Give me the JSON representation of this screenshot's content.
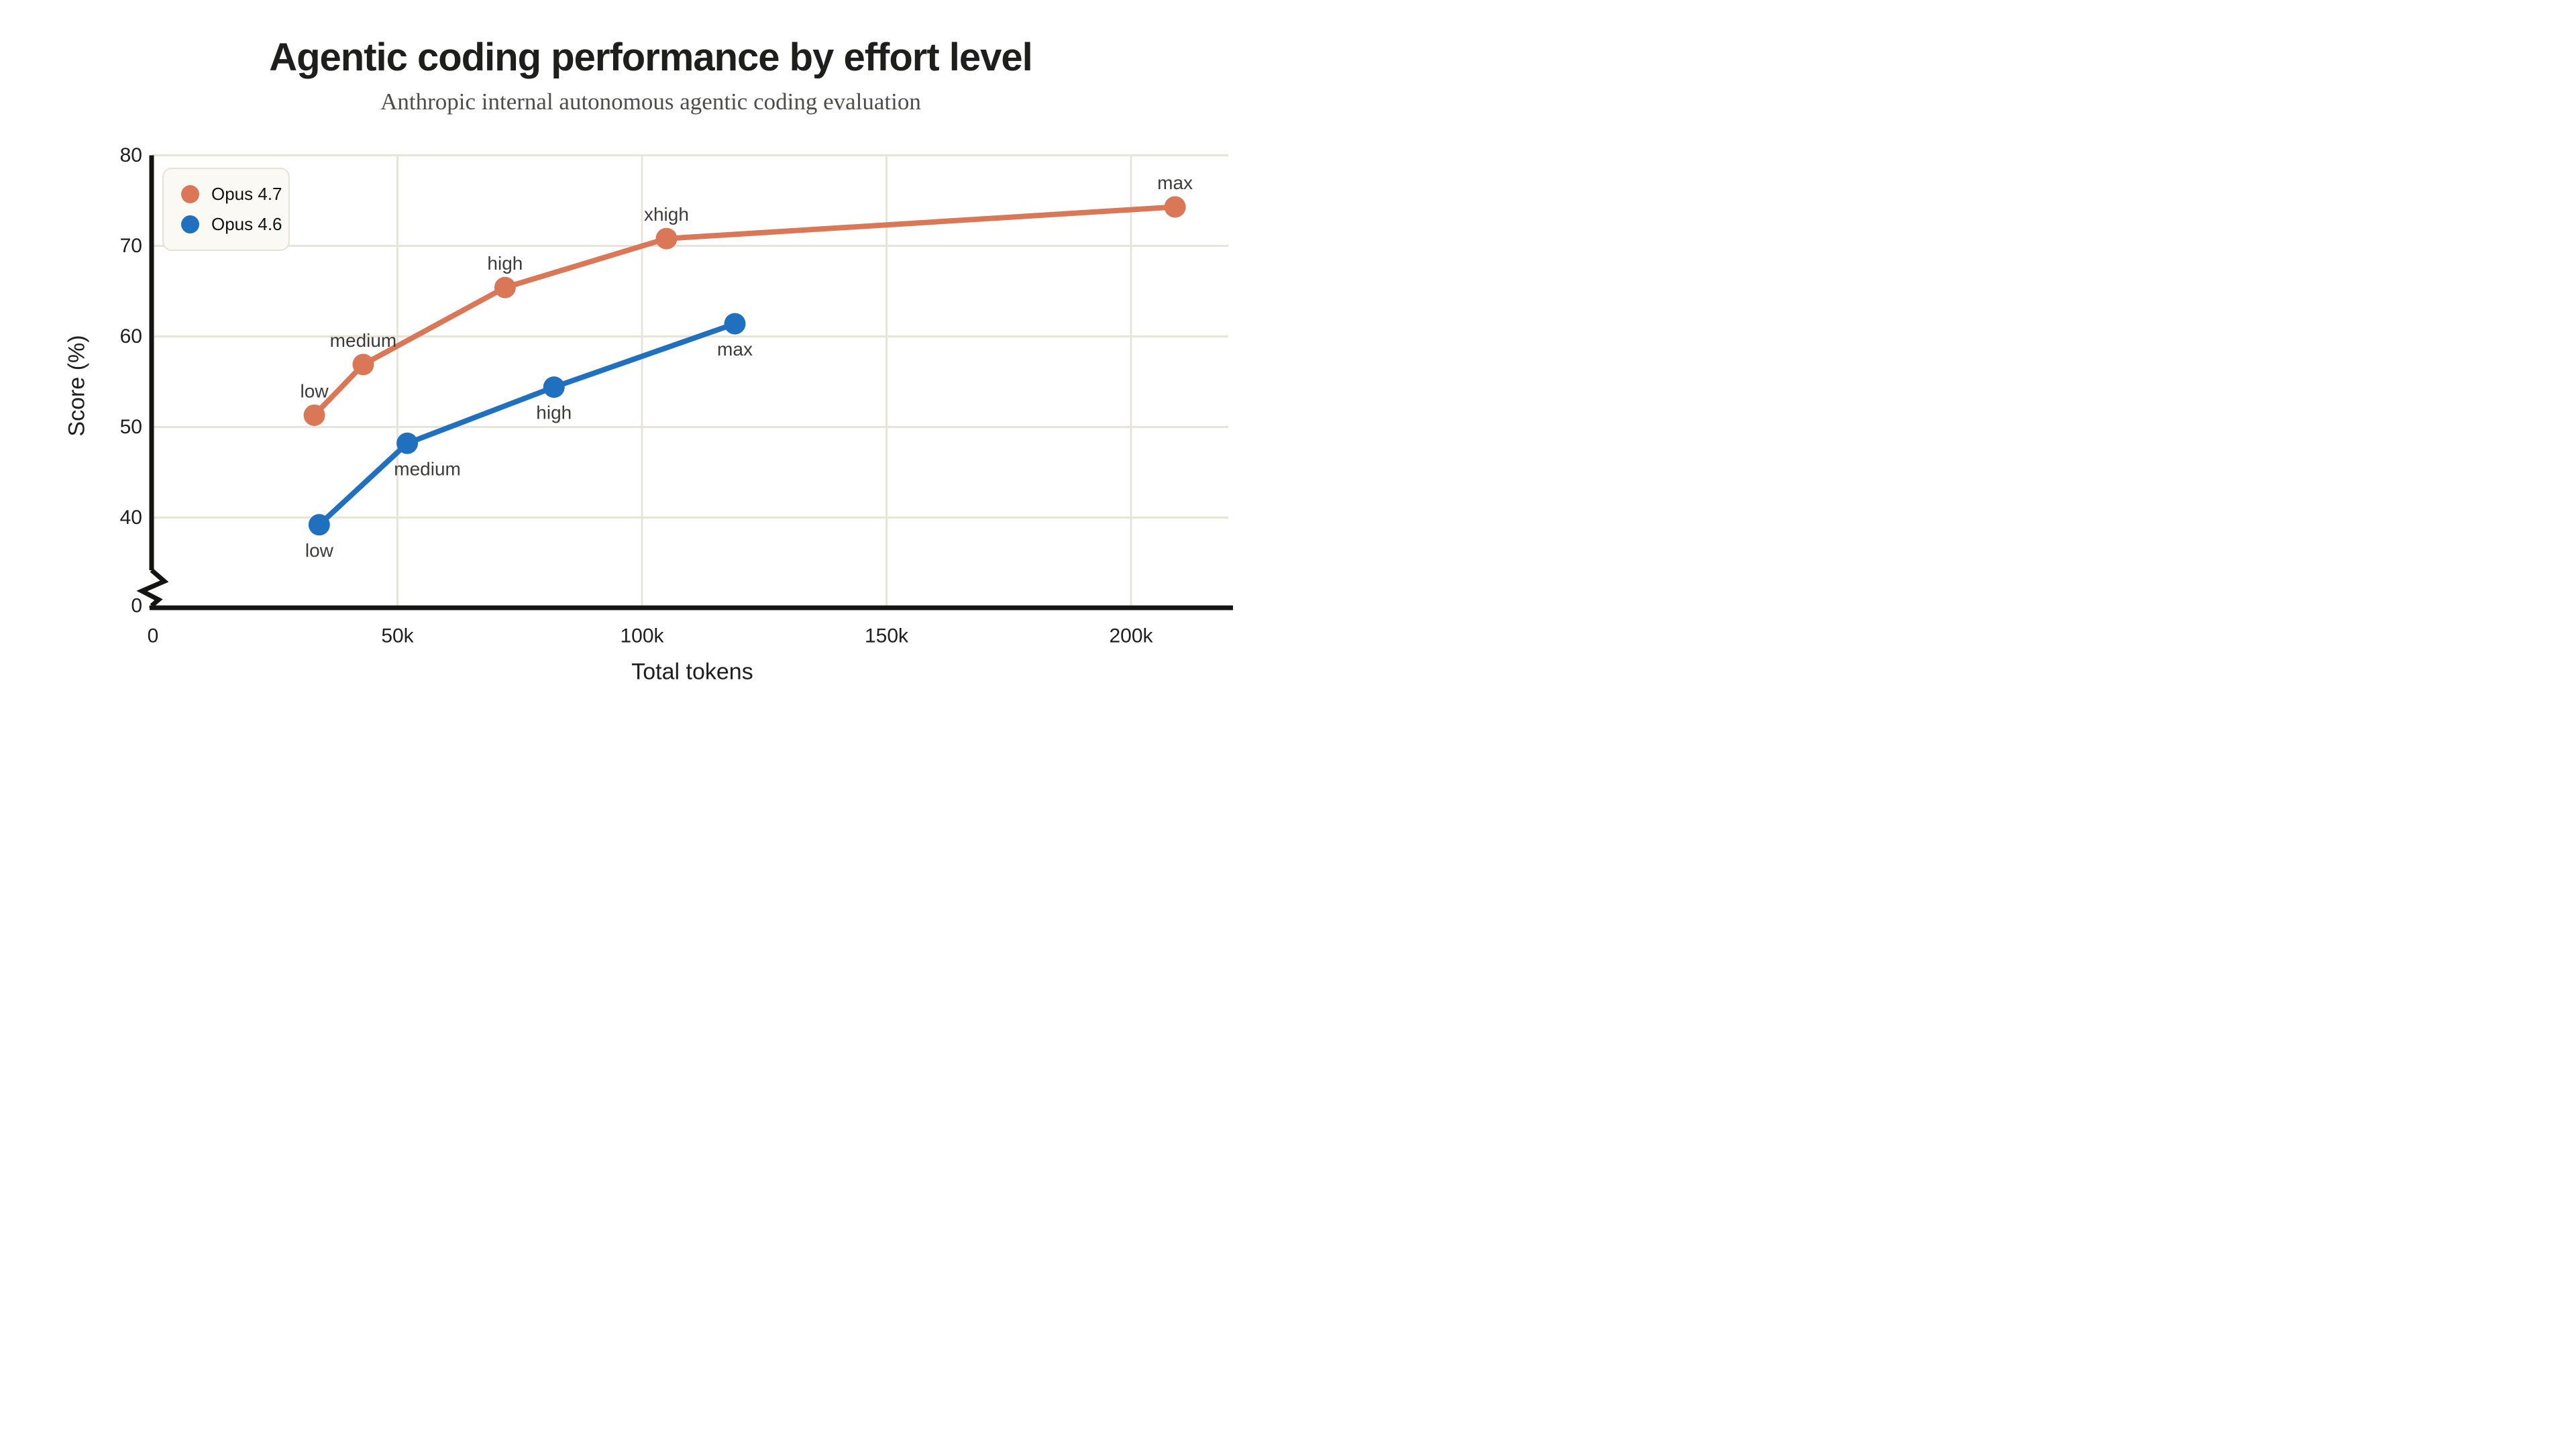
{
  "title": "Agentic coding performance by effort level",
  "subtitle": "Anthropic internal autonomous agentic coding evaluation",
  "legend": {
    "items": [
      {
        "label": "Opus 4.7",
        "color": "#D97757"
      },
      {
        "label": "Opus 4.6",
        "color": "#2070C0"
      }
    ]
  },
  "colors": {
    "orange": "#D97757",
    "blue": "#2070C0",
    "gridline": "#e7e4da",
    "axis": "#141412",
    "legend_bg": "#faf9f3",
    "legend_border": "#e5e2d8",
    "label_text": "#3b3b38"
  },
  "chart_data": {
    "type": "line",
    "title": "Agentic coding performance by effort level",
    "subtitle": "Anthropic internal autonomous agentic coding evaluation",
    "xlabel": "Total tokens",
    "ylabel": "Score (%)",
    "x_ticks": [
      {
        "tokens_k": 0,
        "label": "0"
      },
      {
        "tokens_k": 50,
        "label": "50k"
      },
      {
        "tokens_k": 100,
        "label": "100k"
      },
      {
        "tokens_k": 150,
        "label": "150k"
      },
      {
        "tokens_k": 200,
        "label": "200k"
      }
    ],
    "y_ticks": [
      {
        "score": 80,
        "label": "80"
      },
      {
        "score": 70,
        "label": "70"
      },
      {
        "score": 60,
        "label": "60"
      },
      {
        "score": 50,
        "label": "50"
      },
      {
        "score": 40,
        "label": "40"
      }
    ],
    "y_break_tick_label": "0",
    "axis_break": true,
    "grid": true,
    "legend_position": "top-left",
    "ylim_shown": [
      40,
      80
    ],
    "xlim_k": [
      0,
      220
    ],
    "series": [
      {
        "name": "Opus 4.7",
        "color": "#D97757",
        "label_side": "above",
        "points": [
          {
            "label": "low",
            "tokens_k": 33,
            "score": 51.3
          },
          {
            "label": "medium",
            "tokens_k": 43,
            "score": 56.9
          },
          {
            "label": "high",
            "tokens_k": 72,
            "score": 65.4
          },
          {
            "label": "xhigh",
            "tokens_k": 105,
            "score": 70.8
          },
          {
            "label": "max",
            "tokens_k": 209,
            "score": 74.3
          }
        ]
      },
      {
        "name": "Opus 4.6",
        "color": "#2070C0",
        "label_side": "below",
        "points": [
          {
            "label": "low",
            "tokens_k": 34,
            "score": 39.2
          },
          {
            "label": "medium",
            "tokens_k": 52,
            "score": 48.2,
            "label_dx": 30
          },
          {
            "label": "high",
            "tokens_k": 82,
            "score": 54.4
          },
          {
            "label": "max",
            "tokens_k": 119,
            "score": 61.4
          }
        ]
      }
    ]
  }
}
